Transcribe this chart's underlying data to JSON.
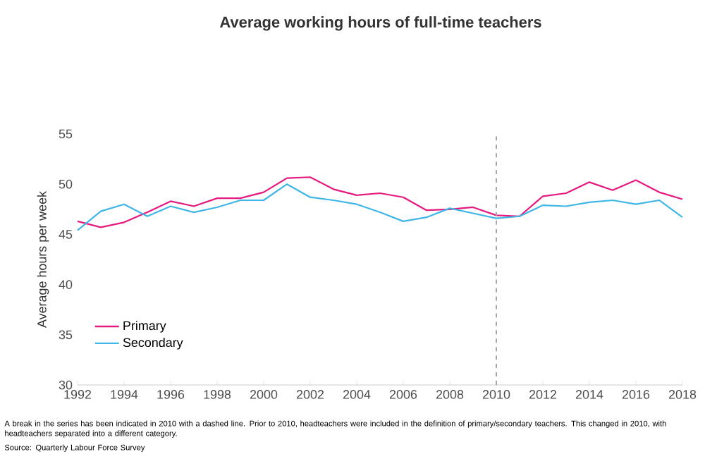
{
  "chart_data": {
    "type": "line",
    "title": "Average working hours of full-time teachers",
    "ylabel": "Average hours per week",
    "x": [
      1992,
      1993,
      1994,
      1995,
      1996,
      1997,
      1998,
      1999,
      2000,
      2001,
      2002,
      2003,
      2004,
      2005,
      2006,
      2007,
      2008,
      2009,
      2010,
      2011,
      2012,
      2013,
      2014,
      2015,
      2016,
      2017,
      2018
    ],
    "series": [
      {
        "name": "Primary",
        "color": "#e6197f",
        "values": [
          46.3,
          45.7,
          46.2,
          47.2,
          48.3,
          47.8,
          48.6,
          48.6,
          49.2,
          50.6,
          50.7,
          49.5,
          48.9,
          49.1,
          48.7,
          47.4,
          47.5,
          47.7,
          46.9,
          46.8,
          48.8,
          49.1,
          50.2,
          49.4,
          50.4,
          49.2,
          48.5
        ]
      },
      {
        "name": "Secondary",
        "color": "#3fb6e6",
        "values": [
          45.4,
          47.3,
          48.0,
          46.8,
          47.8,
          47.2,
          47.7,
          48.4,
          48.4,
          50.0,
          48.7,
          48.4,
          48.0,
          47.2,
          46.3,
          46.7,
          47.6,
          47.1,
          46.6,
          46.8,
          47.9,
          47.8,
          48.2,
          48.4,
          48.0,
          48.4,
          46.7
        ]
      }
    ],
    "xlim": [
      1992,
      2018
    ],
    "xticks": [
      1992,
      1994,
      1996,
      1998,
      2000,
      2002,
      2004,
      2006,
      2008,
      2010,
      2012,
      2014,
      2016,
      2018
    ],
    "ylim": [
      30,
      55
    ],
    "yticks": [
      30,
      35,
      40,
      45,
      50,
      55
    ],
    "ref_lines": [
      {
        "axis": "x",
        "value": 2010,
        "color": "#a6a6a6",
        "line_style": "dashed"
      }
    ],
    "legend": "bottom left",
    "grid": false,
    "annotations": [
      "A break in the series has been indicated in 2010 with a dashed line. Prior to 2010, headteachers were included in the definition of primary/secondary teachers. This changed in 2010, with headteachers separated into a different category.",
      "Source: Quarterly Labour Force Survey"
    ]
  }
}
